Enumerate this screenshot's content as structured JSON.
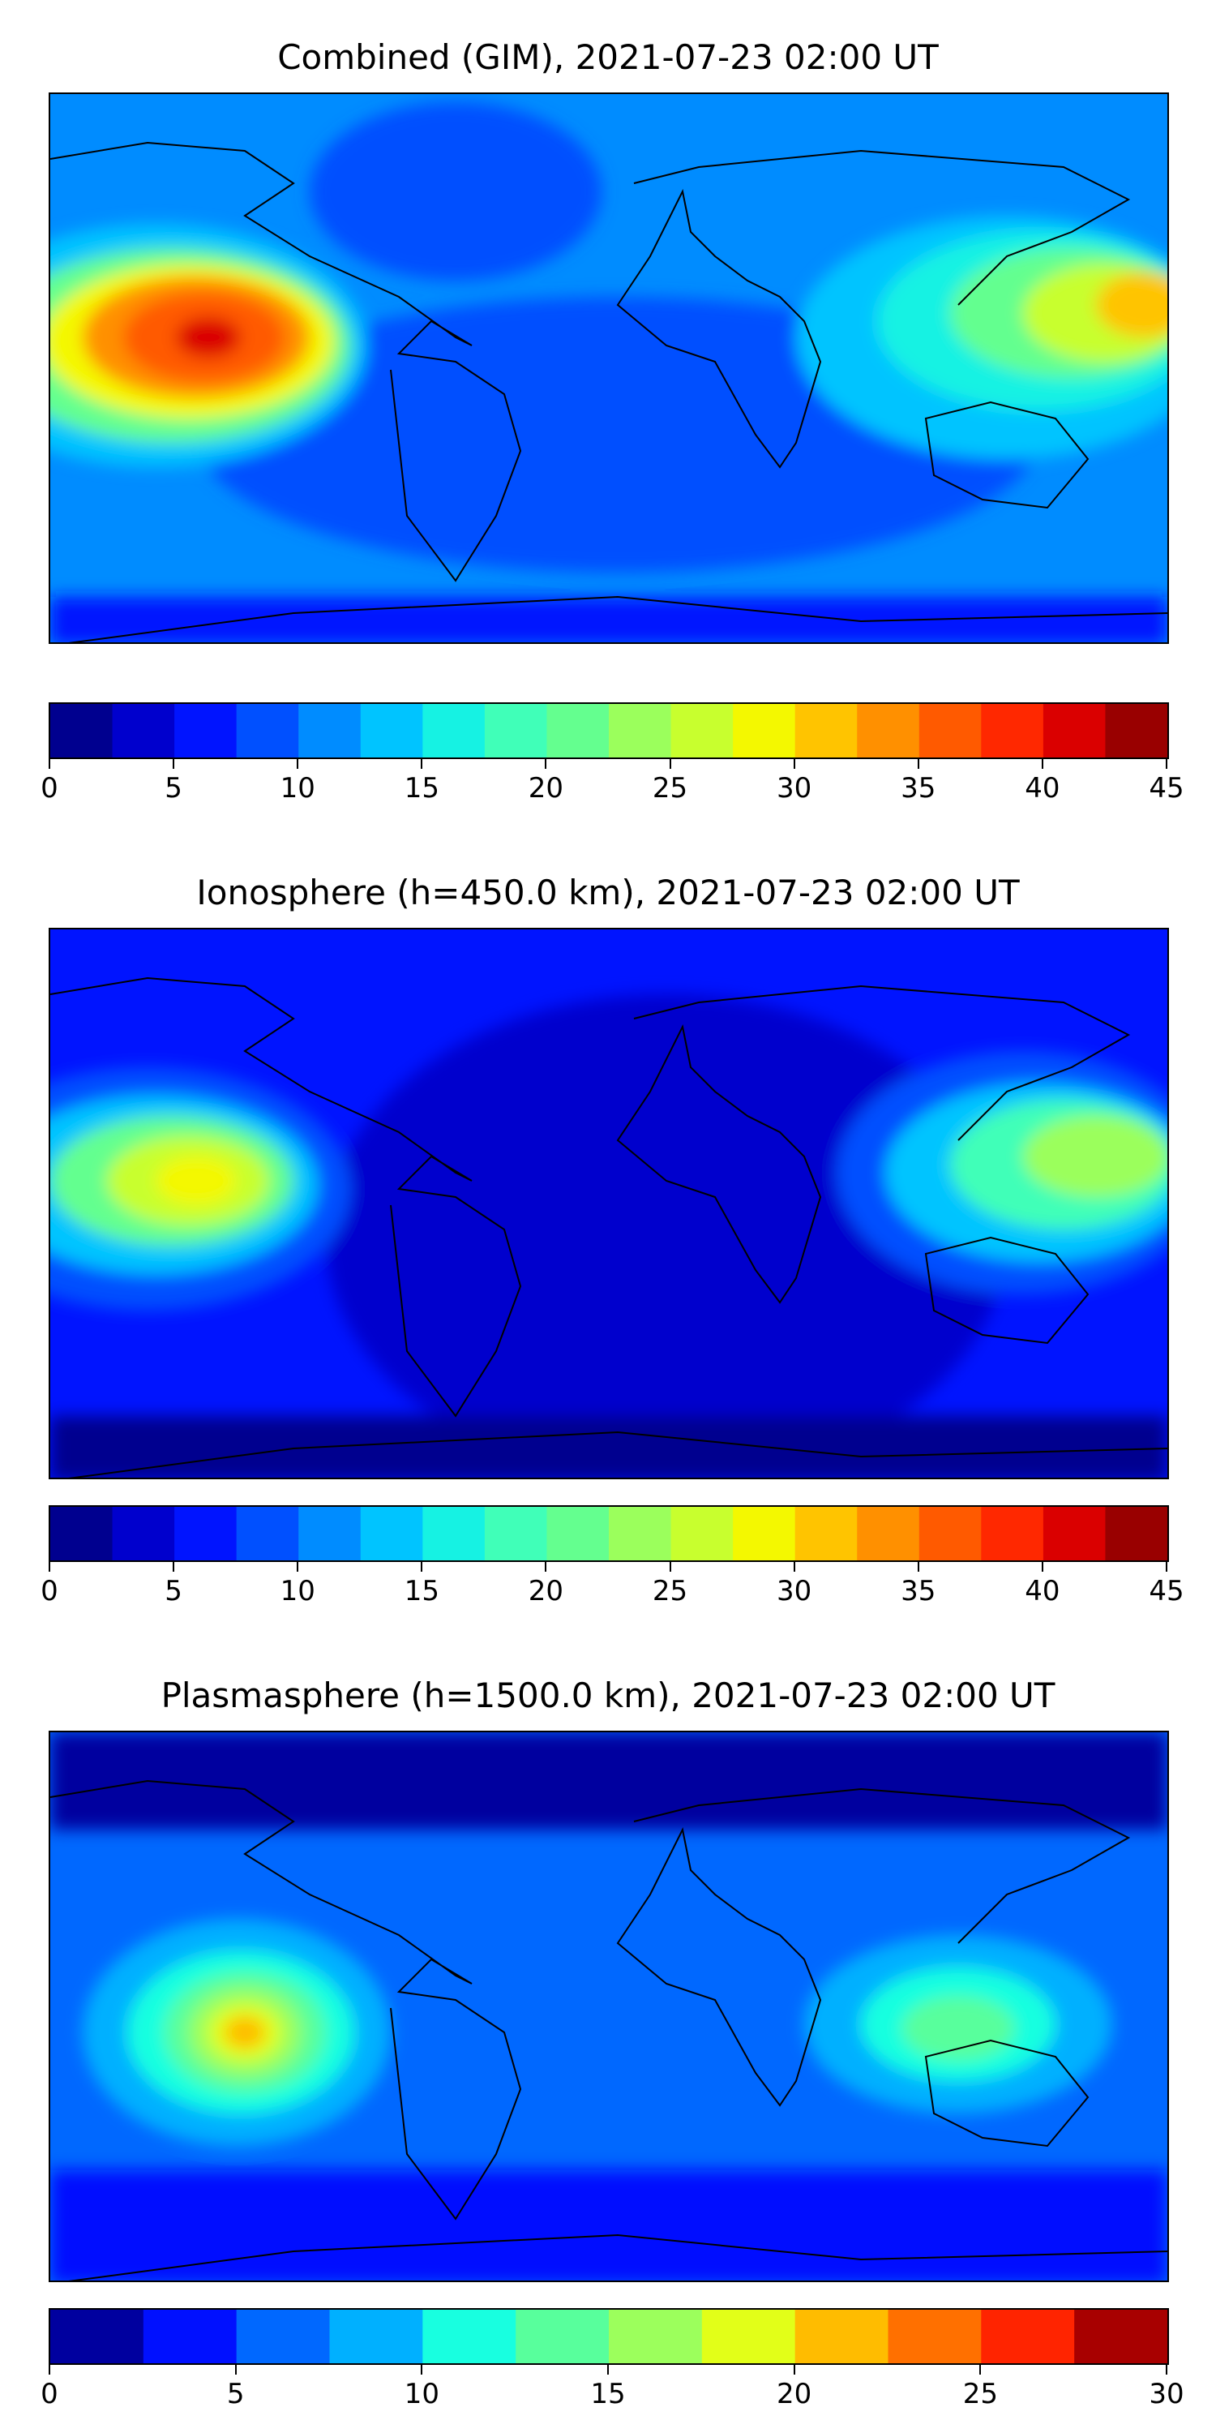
{
  "maps": [
    {
      "title": "Combined (GIM), 2021-07-23 02:00 UT",
      "colorbar": {
        "min": 0,
        "max": 45,
        "ticks": [
          "0",
          "5",
          "10",
          "15",
          "20",
          "25",
          "30",
          "35",
          "40",
          "45"
        ],
        "colors": [
          "#00008f",
          "#0000cd",
          "#0014ff",
          "#0050ff",
          "#008cff",
          "#00c4ff",
          "#16f2e3",
          "#40ffb8",
          "#64ff8f",
          "#9bff5c",
          "#c8ff2e",
          "#f4f800",
          "#ffc400",
          "#ff9000",
          "#ff5a00",
          "#ff2800",
          "#da0000",
          "#990000"
        ]
      }
    },
    {
      "title": "Ionosphere  (h=450.0 km), 2021-07-23 02:00 UT",
      "colorbar": {
        "min": 0,
        "max": 45,
        "ticks": [
          "0",
          "5",
          "10",
          "15",
          "20",
          "25",
          "30",
          "35",
          "40",
          "45"
        ],
        "colors": [
          "#00008f",
          "#0000cd",
          "#0014ff",
          "#0050ff",
          "#008cff",
          "#00c4ff",
          "#16f2e3",
          "#40ffb8",
          "#64ff8f",
          "#9bff5c",
          "#c8ff2e",
          "#f4f800",
          "#ffc400",
          "#ff9000",
          "#ff5a00",
          "#ff2800",
          "#da0000",
          "#990000"
        ]
      }
    },
    {
      "title": "Plasmasphere (h=1500.0 km), 2021-07-23 02:00 UT",
      "colorbar": {
        "min": 0,
        "max": 30,
        "ticks": [
          "0",
          "5",
          "10",
          "15",
          "20",
          "25",
          "30"
        ],
        "colors": [
          "#00009f",
          "#0010ff",
          "#0068ff",
          "#00b0ff",
          "#18ffe0",
          "#58ff9c",
          "#9cff5c",
          "#e2ff18",
          "#ffbc00",
          "#ff7000",
          "#ff2400",
          "#a80000"
        ]
      }
    }
  ]
}
